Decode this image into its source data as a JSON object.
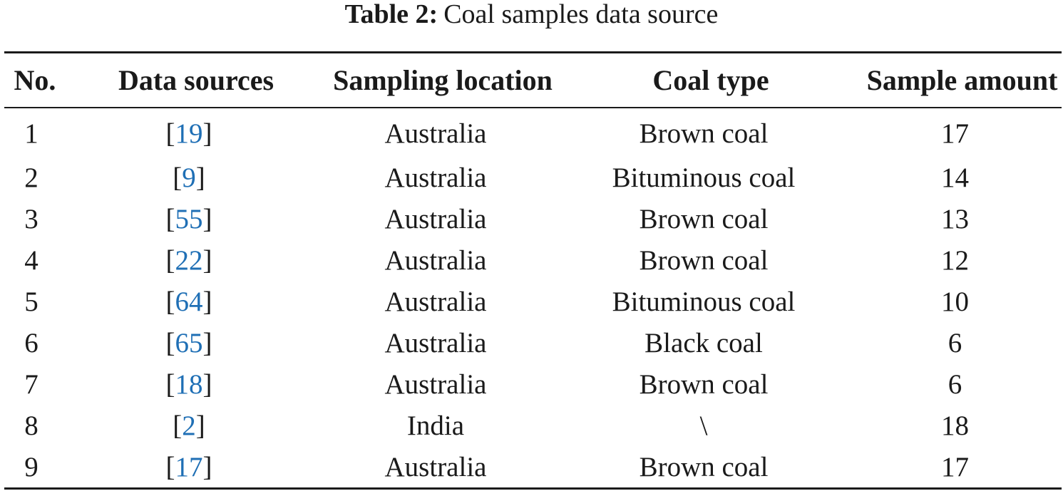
{
  "caption": {
    "label": "Table 2:",
    "text": "Coal samples data source"
  },
  "table": {
    "headers": {
      "no": "No.",
      "data_sources": "Data sources",
      "sampling_location": "Sampling location",
      "coal_type": "Coal type",
      "sample_amount": "Sample amount"
    },
    "rows": [
      {
        "no": "1",
        "cite": "19",
        "location": "Australia",
        "coal_type": "Brown coal",
        "amount": "17"
      },
      {
        "no": "2",
        "cite": "9",
        "location": "Australia",
        "coal_type": "Bituminous coal",
        "amount": "14"
      },
      {
        "no": "3",
        "cite": "55",
        "location": "Australia",
        "coal_type": "Brown coal",
        "amount": "13"
      },
      {
        "no": "4",
        "cite": "22",
        "location": "Australia",
        "coal_type": "Brown coal",
        "amount": "12"
      },
      {
        "no": "5",
        "cite": "64",
        "location": "Australia",
        "coal_type": "Bituminous coal",
        "amount": "10"
      },
      {
        "no": "6",
        "cite": "65",
        "location": "Australia",
        "coal_type": "Black coal",
        "amount": "6"
      },
      {
        "no": "7",
        "cite": "18",
        "location": "Australia",
        "coal_type": "Brown coal",
        "amount": "6"
      },
      {
        "no": "8",
        "cite": "2",
        "location": "India",
        "coal_type": "\\",
        "amount": "18"
      },
      {
        "no": "9",
        "cite": "17",
        "location": "Australia",
        "coal_type": "Brown coal",
        "amount": "17"
      }
    ]
  },
  "colors": {
    "text": "#1a1a1a",
    "citation_link": "#1f6fb5"
  }
}
